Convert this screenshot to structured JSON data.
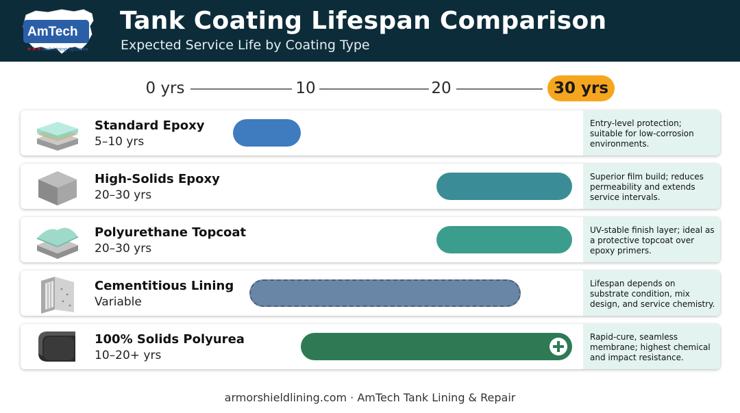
{
  "header": {
    "title": "Tank Coating Lifespan Comparison",
    "subtitle": "Expected Service Life by Coating Type",
    "logo_text": "AmTech",
    "logo_subtext": "Tank Lining Systems"
  },
  "chart_data": {
    "type": "bar",
    "axis": {
      "ticks": [
        "0 yrs",
        "10",
        "20",
        "30 yrs"
      ],
      "tick_values": [
        0,
        10,
        20,
        30
      ],
      "highlighted_tick": "30 yrs",
      "highlight_color": "#f6a61e",
      "xlim": [
        0,
        30
      ]
    },
    "rows": [
      {
        "name": "Standard Epoxy",
        "range_label": "5–10 yrs",
        "start": 5,
        "end": 10,
        "color": "#3f7bbf",
        "style": "solid",
        "plus": false,
        "icon": "glass-layer-stack-icon",
        "note": "Entry-level protection; suitable for low-corrosion environments."
      },
      {
        "name": "High-Solids Epoxy",
        "range_label": "20–30 yrs",
        "start": 20,
        "end": 30,
        "color": "#3a8d96",
        "style": "solid",
        "plus": false,
        "icon": "steel-block-icon",
        "note": "Superior film build; reduces permeability and extends service intervals."
      },
      {
        "name": "Polyurethane Topcoat",
        "range_label": "20–30 yrs",
        "start": 20,
        "end": 30,
        "color": "#3b9d8b",
        "style": "solid",
        "plus": false,
        "icon": "topcoat-layer-icon",
        "note": "UV-stable finish layer; ideal as a protective topcoat over epoxy primers."
      },
      {
        "name": "Cementitious Lining",
        "range_label": "Variable",
        "start": 6.2,
        "end": 26.2,
        "color": "#6a86a6",
        "style": "dashed",
        "plus": false,
        "icon": "concrete-tank-cutaway-icon",
        "note": "Lifespan depends on substrate condition, mix design, and service chemistry."
      },
      {
        "name": "100% Solids Polyurea",
        "range_label": "10–20+ yrs",
        "start": 10,
        "end": 30,
        "color": "#2f7a55",
        "style": "solid",
        "plus": true,
        "icon": "rubber-membrane-block-icon",
        "note": "Rapid-cure, seamless membrane; highest chemical and impact resistance."
      }
    ]
  },
  "footer": {
    "text": "armorshieldlining.com · AmTech Tank Lining & Repair"
  }
}
